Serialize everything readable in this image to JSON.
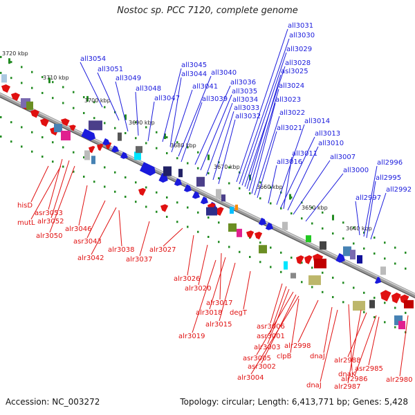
{
  "title": "Nostoc sp. PCC 7120, complete genome",
  "footer": {
    "accession": "Accession: NC_003272",
    "topology": "Topology: circular; Length: 6,413,771 bp; Genes: 5,428"
  },
  "colors": {
    "forward": "#1a1adc",
    "reverse": "#e01010",
    "backbone": "#888888",
    "tick_dot": "#228b22"
  },
  "scale_ticks": [
    "3720 kbp",
    "3710 kbp",
    "3700 kbp",
    "3690 kbp",
    "3680 kbp",
    "3670 kbp",
    "3660 kbp",
    "3650 kbp",
    "3640 kbp"
  ],
  "forward_genes": [
    "all3054",
    "all3051",
    "all3049",
    "all3048",
    "all3047",
    "all3045",
    "all3044",
    "all3041",
    "all3040",
    "all3039",
    "all3036",
    "all3035",
    "all3034",
    "all3033",
    "all3032",
    "all3031",
    "all3030",
    "all3029",
    "all3028",
    "asl3025",
    "all3024",
    "all3023",
    "all3022",
    "all3021",
    "all3016",
    "all3014",
    "all3013",
    "all3011",
    "all3010",
    "all3007",
    "all3000",
    "all2997",
    "all2996",
    "all2995",
    "all2992"
  ],
  "reverse_genes": [
    "hisD",
    "asr3053",
    "mutL",
    "alr3052",
    "alr3050",
    "alr3046",
    "asr3043",
    "alr3042",
    "alr3038",
    "alr3037",
    "alr3027",
    "alr3026",
    "alr3020",
    "alr3017",
    "alr3018",
    "alr3015",
    "degT",
    "alr3019",
    "asr3006",
    "asr3001",
    "alr3003",
    "asr3005",
    "asr3002",
    "alr3004",
    "clpB",
    "alr2998",
    "dnaJ",
    "dnaK",
    "dnaJ",
    "alr2987",
    "alr2988",
    "alr2986",
    "asr2985",
    "alr2980"
  ]
}
